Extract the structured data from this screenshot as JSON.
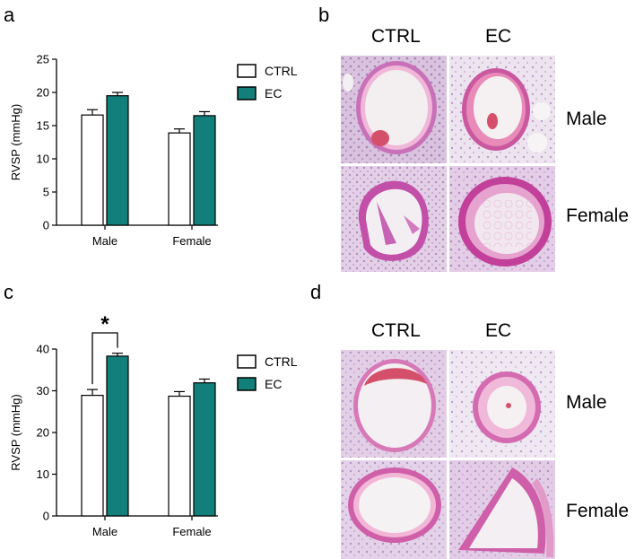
{
  "figure": {
    "panels": {
      "a": "a",
      "b": "b",
      "c": "c",
      "d": "d"
    },
    "histology": {
      "b": {
        "col_labels": [
          "CTRL",
          "EC"
        ],
        "row_labels": [
          "Male",
          "Female"
        ]
      },
      "d": {
        "col_labels": [
          "CTRL",
          "EC"
        ],
        "row_labels": [
          "Male",
          "Female"
        ]
      }
    },
    "colors": {
      "ctrl_fill": "#ffffff",
      "ec_fill": "#127f7a",
      "stain_pink": "#e8a6d0",
      "stain_purple": "#b05aa8",
      "rbc_red": "#d4506a"
    }
  },
  "chart_data": [
    {
      "type": "bar",
      "panel": "a",
      "categories": [
        "Male",
        "Female"
      ],
      "series": [
        {
          "name": "CTRL",
          "values": [
            16.6,
            13.9
          ],
          "errors": [
            0.8,
            0.6
          ],
          "color": "#ffffff"
        },
        {
          "name": "EC",
          "values": [
            19.5,
            16.5
          ],
          "errors": [
            0.5,
            0.6
          ],
          "color": "#127f7a"
        }
      ],
      "ylabel": "RVSP (mmHg)",
      "xlabel": "",
      "ylim": [
        0,
        25
      ],
      "yticks": [
        "0",
        "5",
        "10",
        "15",
        "20",
        "25"
      ],
      "legend_position": "right",
      "grid": false,
      "significance": []
    },
    {
      "type": "bar",
      "panel": "c",
      "categories": [
        "Male",
        "Female"
      ],
      "series": [
        {
          "name": "CTRL",
          "values": [
            28.9,
            28.7
          ],
          "errors": [
            1.4,
            1.1
          ],
          "color": "#ffffff"
        },
        {
          "name": "EC",
          "values": [
            38.3,
            31.9
          ],
          "errors": [
            0.7,
            0.9
          ],
          "color": "#127f7a"
        }
      ],
      "ylabel": "RVSP (mmHg)",
      "xlabel": "",
      "ylim": [
        0,
        40
      ],
      "yticks": [
        "0",
        "10",
        "20",
        "30",
        "40"
      ],
      "legend_position": "right",
      "grid": false,
      "significance": [
        {
          "category": "Male",
          "label": "*"
        }
      ]
    }
  ]
}
